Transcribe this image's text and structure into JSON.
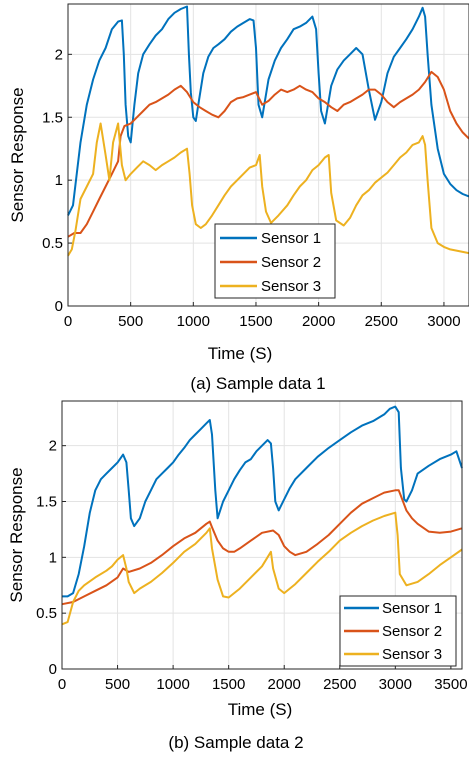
{
  "colors": {
    "sensor1": "#0072BD",
    "sensor2": "#D95319",
    "sensor3": "#EDB120"
  },
  "chart_data": [
    {
      "type": "line",
      "caption": "(a) Sample data 1",
      "xlabel": "Time (S)",
      "ylabel": "Sensor Response",
      "xlim": [
        0,
        3200
      ],
      "ylim": [
        0,
        2.4
      ],
      "xticks": [
        0,
        500,
        1000,
        1500,
        2000,
        2500,
        3000
      ],
      "yticks": [
        0,
        0.5,
        1,
        1.5,
        2
      ],
      "xtick_labels": [
        "0",
        "500",
        "1000",
        "1500",
        "2000",
        "2500",
        "3000"
      ],
      "ytick_labels": [
        "0",
        "0.5",
        "1",
        "1.5",
        "2"
      ],
      "grid": true,
      "legend_position": "bottom-right",
      "series": [
        {
          "name": "Sensor 1",
          "color_key": "sensor1",
          "x": [
            0,
            40,
            100,
            150,
            200,
            250,
            300,
            350,
            400,
            430,
            445,
            460,
            480,
            500,
            530,
            560,
            600,
            650,
            700,
            750,
            800,
            850,
            900,
            950,
            965,
            980,
            1000,
            1020,
            1040,
            1080,
            1120,
            1160,
            1200,
            1250,
            1300,
            1350,
            1400,
            1450,
            1480,
            1500,
            1520,
            1550,
            1600,
            1650,
            1700,
            1750,
            1800,
            1850,
            1900,
            1950,
            1980,
            2000,
            2020,
            2050,
            2100,
            2150,
            2200,
            2250,
            2300,
            2350,
            2400,
            2450,
            2500,
            2550,
            2600,
            2650,
            2700,
            2750,
            2800,
            2830,
            2850,
            2870,
            2900,
            2950,
            3000,
            3050,
            3100,
            3150,
            3200
          ],
          "y": [
            0.72,
            0.8,
            1.3,
            1.6,
            1.8,
            1.95,
            2.05,
            2.2,
            2.26,
            2.27,
            2.0,
            1.6,
            1.35,
            1.3,
            1.6,
            1.85,
            2.0,
            2.08,
            2.15,
            2.2,
            2.28,
            2.33,
            2.36,
            2.38,
            2.0,
            1.7,
            1.5,
            1.47,
            1.6,
            1.85,
            1.98,
            2.05,
            2.08,
            2.12,
            2.18,
            2.22,
            2.25,
            2.28,
            2.27,
            2.05,
            1.6,
            1.5,
            1.8,
            1.95,
            2.05,
            2.12,
            2.2,
            2.22,
            2.25,
            2.3,
            2.2,
            1.85,
            1.55,
            1.45,
            1.75,
            1.88,
            1.95,
            2.0,
            2.05,
            2.0,
            1.72,
            1.48,
            1.62,
            1.85,
            1.98,
            2.05,
            2.12,
            2.2,
            2.3,
            2.37,
            2.3,
            2.0,
            1.6,
            1.25,
            1.05,
            0.97,
            0.92,
            0.89,
            0.87
          ]
        },
        {
          "name": "Sensor 2",
          "color_key": "sensor2",
          "x": [
            0,
            50,
            100,
            150,
            200,
            250,
            300,
            350,
            400,
            420,
            450,
            500,
            550,
            600,
            650,
            700,
            750,
            800,
            850,
            900,
            950,
            1000,
            1050,
            1100,
            1150,
            1200,
            1250,
            1300,
            1350,
            1400,
            1450,
            1500,
            1550,
            1600,
            1650,
            1700,
            1750,
            1800,
            1850,
            1900,
            1950,
            2000,
            2050,
            2100,
            2150,
            2200,
            2250,
            2300,
            2350,
            2400,
            2450,
            2500,
            2550,
            2600,
            2650,
            2700,
            2750,
            2800,
            2850,
            2900,
            2950,
            3000,
            3050,
            3100,
            3150,
            3200
          ],
          "y": [
            0.55,
            0.58,
            0.58,
            0.65,
            0.75,
            0.85,
            0.95,
            1.05,
            1.15,
            1.35,
            1.43,
            1.45,
            1.5,
            1.55,
            1.6,
            1.62,
            1.65,
            1.68,
            1.72,
            1.75,
            1.7,
            1.62,
            1.58,
            1.55,
            1.52,
            1.5,
            1.55,
            1.62,
            1.65,
            1.66,
            1.68,
            1.7,
            1.6,
            1.63,
            1.68,
            1.72,
            1.7,
            1.72,
            1.75,
            1.72,
            1.7,
            1.65,
            1.62,
            1.58,
            1.55,
            1.6,
            1.62,
            1.65,
            1.68,
            1.72,
            1.72,
            1.68,
            1.62,
            1.58,
            1.62,
            1.65,
            1.68,
            1.72,
            1.78,
            1.86,
            1.82,
            1.72,
            1.55,
            1.45,
            1.38,
            1.33
          ]
        },
        {
          "name": "Sensor 3",
          "color_key": "sensor3",
          "x": [
            0,
            30,
            60,
            100,
            150,
            200,
            230,
            260,
            300,
            330,
            360,
            400,
            430,
            460,
            500,
            550,
            600,
            650,
            700,
            750,
            800,
            850,
            900,
            950,
            970,
            990,
            1020,
            1060,
            1100,
            1150,
            1200,
            1250,
            1300,
            1350,
            1400,
            1450,
            1500,
            1530,
            1550,
            1580,
            1620,
            1680,
            1750,
            1800,
            1850,
            1900,
            1950,
            2000,
            2050,
            2080,
            2100,
            2140,
            2200,
            2250,
            2300,
            2350,
            2400,
            2450,
            2500,
            2550,
            2600,
            2650,
            2700,
            2750,
            2800,
            2830,
            2850,
            2870,
            2900,
            2950,
            3000,
            3050,
            3100,
            3150,
            3200
          ],
          "y": [
            0.4,
            0.45,
            0.6,
            0.85,
            0.95,
            1.05,
            1.3,
            1.45,
            1.2,
            1.0,
            1.3,
            1.45,
            1.12,
            1.0,
            1.05,
            1.1,
            1.15,
            1.12,
            1.08,
            1.12,
            1.15,
            1.18,
            1.22,
            1.25,
            1.05,
            0.8,
            0.65,
            0.62,
            0.65,
            0.72,
            0.8,
            0.88,
            0.95,
            1.0,
            1.05,
            1.1,
            1.12,
            1.2,
            0.95,
            0.75,
            0.66,
            0.72,
            0.8,
            0.88,
            0.95,
            1.0,
            1.08,
            1.12,
            1.18,
            1.2,
            0.9,
            0.68,
            0.64,
            0.7,
            0.8,
            0.88,
            0.92,
            0.98,
            1.02,
            1.06,
            1.12,
            1.18,
            1.22,
            1.28,
            1.3,
            1.35,
            1.28,
            1.0,
            0.62,
            0.5,
            0.47,
            0.45,
            0.44,
            0.43,
            0.42
          ]
        }
      ]
    },
    {
      "type": "line",
      "caption": "(b) Sample data 2",
      "xlabel": "Time (S)",
      "ylabel": "Sensor Response",
      "xlim": [
        0,
        3600
      ],
      "ylim": [
        0,
        2.4
      ],
      "xticks": [
        0,
        500,
        1000,
        1500,
        2000,
        2500,
        3000,
        3500
      ],
      "yticks": [
        0,
        0.5,
        1,
        1.5,
        2
      ],
      "xtick_labels": [
        "0",
        "500",
        "1000",
        "1500",
        "2000",
        "2500",
        "3000",
        "3500"
      ],
      "ytick_labels": [
        "0",
        "0.5",
        "1",
        "1.5",
        "2"
      ],
      "grid": true,
      "legend_position": "bottom-right",
      "series": [
        {
          "name": "Sensor 1",
          "color_key": "sensor1",
          "x": [
            0,
            50,
            100,
            150,
            200,
            250,
            300,
            350,
            400,
            450,
            500,
            550,
            580,
            600,
            620,
            650,
            700,
            750,
            800,
            850,
            900,
            950,
            1000,
            1050,
            1100,
            1150,
            1200,
            1250,
            1300,
            1330,
            1350,
            1380,
            1400,
            1450,
            1500,
            1550,
            1600,
            1650,
            1700,
            1750,
            1800,
            1850,
            1880,
            1900,
            1920,
            1950,
            2000,
            2050,
            2100,
            2200,
            2300,
            2400,
            2500,
            2600,
            2700,
            2800,
            2900,
            2950,
            3000,
            3030,
            3050,
            3080,
            3100,
            3150,
            3200,
            3300,
            3400,
            3500,
            3550,
            3600
          ],
          "y": [
            0.65,
            0.65,
            0.68,
            0.85,
            1.1,
            1.4,
            1.6,
            1.7,
            1.75,
            1.8,
            1.85,
            1.92,
            1.85,
            1.6,
            1.35,
            1.28,
            1.35,
            1.5,
            1.6,
            1.7,
            1.75,
            1.8,
            1.85,
            1.92,
            1.98,
            2.05,
            2.1,
            2.15,
            2.2,
            2.23,
            2.1,
            1.6,
            1.35,
            1.5,
            1.6,
            1.7,
            1.78,
            1.85,
            1.88,
            1.95,
            2.0,
            2.05,
            2.02,
            1.8,
            1.5,
            1.42,
            1.52,
            1.62,
            1.7,
            1.8,
            1.9,
            1.98,
            2.05,
            2.12,
            2.18,
            2.22,
            2.28,
            2.33,
            2.35,
            2.3,
            1.8,
            1.52,
            1.5,
            1.6,
            1.75,
            1.82,
            1.88,
            1.92,
            1.95,
            1.8
          ]
        },
        {
          "name": "Sensor 2",
          "color_key": "sensor2",
          "x": [
            0,
            100,
            200,
            300,
            400,
            500,
            550,
            600,
            700,
            800,
            900,
            1000,
            1100,
            1200,
            1300,
            1330,
            1350,
            1400,
            1450,
            1500,
            1550,
            1600,
            1700,
            1800,
            1900,
            1950,
            2000,
            2050,
            2100,
            2200,
            2300,
            2400,
            2500,
            2600,
            2700,
            2800,
            2900,
            3000,
            3030,
            3050,
            3100,
            3150,
            3200,
            3300,
            3400,
            3500,
            3600
          ],
          "y": [
            0.58,
            0.6,
            0.65,
            0.7,
            0.75,
            0.82,
            0.9,
            0.87,
            0.9,
            0.95,
            1.02,
            1.1,
            1.17,
            1.22,
            1.3,
            1.32,
            1.27,
            1.15,
            1.08,
            1.05,
            1.05,
            1.08,
            1.15,
            1.22,
            1.24,
            1.2,
            1.1,
            1.05,
            1.02,
            1.05,
            1.12,
            1.2,
            1.3,
            1.4,
            1.48,
            1.53,
            1.58,
            1.6,
            1.6,
            1.55,
            1.42,
            1.35,
            1.3,
            1.23,
            1.22,
            1.23,
            1.26
          ]
        },
        {
          "name": "Sensor 3",
          "color_key": "sensor3",
          "x": [
            0,
            50,
            100,
            150,
            200,
            300,
            400,
            450,
            500,
            550,
            580,
            600,
            650,
            700,
            800,
            900,
            1000,
            1100,
            1200,
            1300,
            1330,
            1350,
            1400,
            1450,
            1500,
            1600,
            1700,
            1800,
            1880,
            1900,
            1950,
            2000,
            2100,
            2200,
            2300,
            2400,
            2500,
            2600,
            2700,
            2800,
            2900,
            3000,
            3020,
            3040,
            3100,
            3200,
            3300,
            3400,
            3500,
            3600
          ],
          "y": [
            0.4,
            0.42,
            0.6,
            0.7,
            0.75,
            0.82,
            0.88,
            0.92,
            0.98,
            1.02,
            0.9,
            0.78,
            0.68,
            0.72,
            0.78,
            0.86,
            0.95,
            1.05,
            1.12,
            1.22,
            1.26,
            1.08,
            0.8,
            0.65,
            0.64,
            0.72,
            0.82,
            0.92,
            1.05,
            0.9,
            0.72,
            0.68,
            0.76,
            0.86,
            0.96,
            1.05,
            1.15,
            1.22,
            1.28,
            1.33,
            1.37,
            1.4,
            1.2,
            0.85,
            0.75,
            0.78,
            0.85,
            0.93,
            1.0,
            1.07
          ]
        }
      ]
    }
  ]
}
